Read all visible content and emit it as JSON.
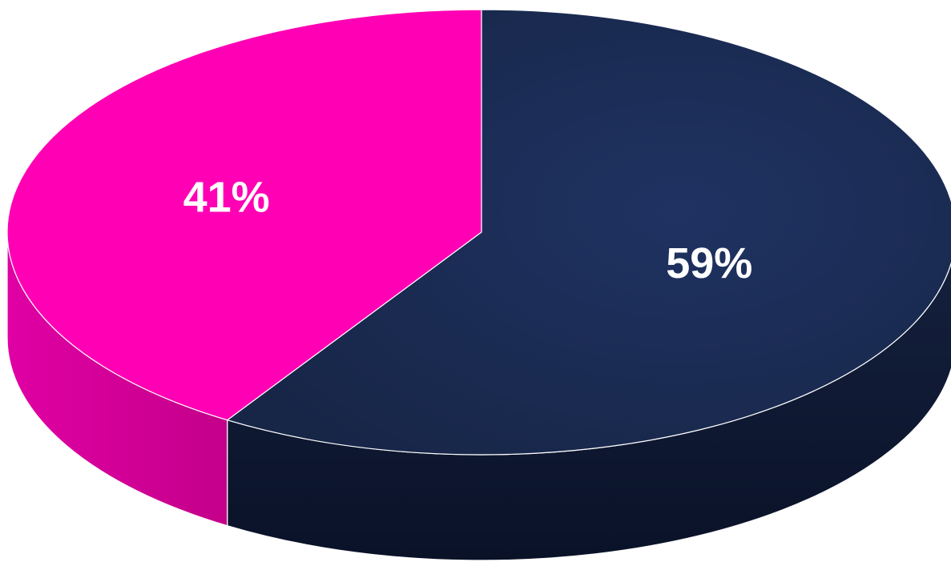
{
  "chart_data": {
    "type": "pie",
    "style": "3d",
    "title": "",
    "slices": [
      {
        "value": 41,
        "label": "41%",
        "color": "#ff00b4",
        "side_color": "#c8008c"
      },
      {
        "value": 59,
        "label": "59%",
        "color": "#1a2950",
        "side_color": "#0f1a36"
      }
    ],
    "legend": "none"
  }
}
